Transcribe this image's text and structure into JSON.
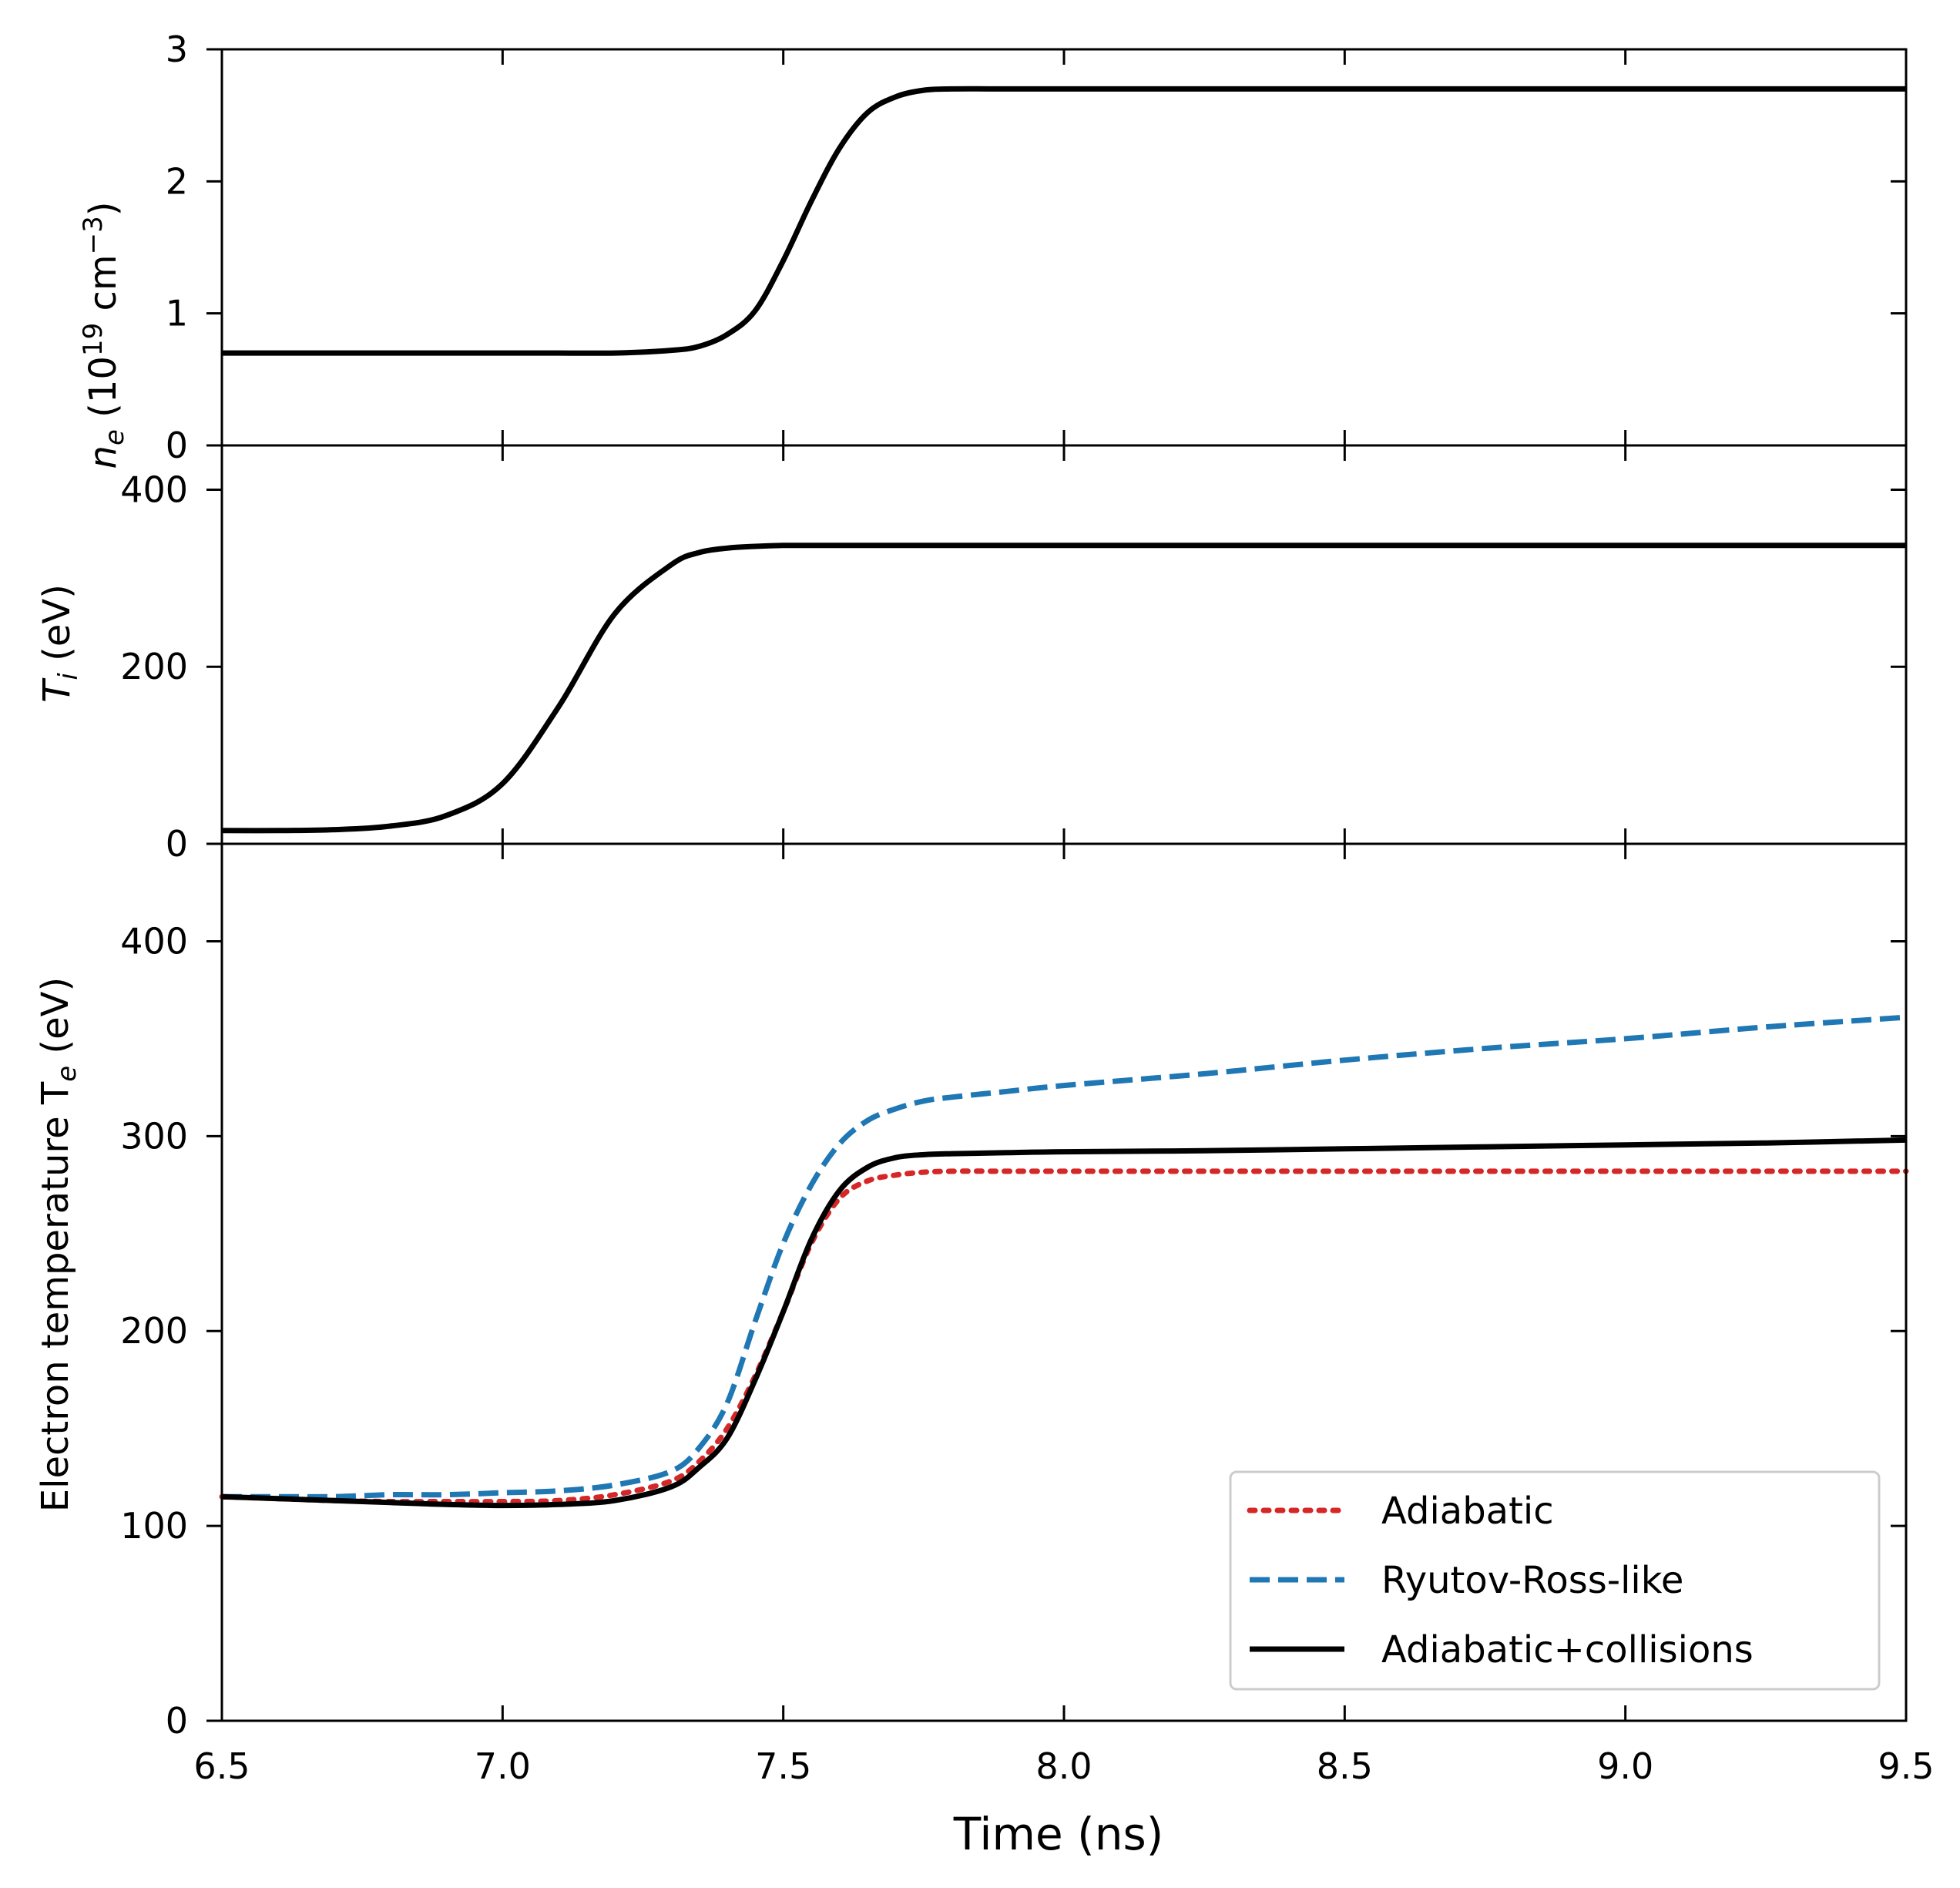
{
  "chart_data": {
    "type": "line",
    "shared_x": {
      "label": "Time (ns)",
      "range": [
        6.5,
        9.5
      ],
      "ticks": [
        6.5,
        7.0,
        7.5,
        8.0,
        8.5,
        9.0,
        9.5
      ],
      "tick_labels": [
        "6.5",
        "7.0",
        "7.5",
        "8.0",
        "8.5",
        "9.0",
        "9.5"
      ]
    },
    "x": [
      6.5,
      6.6,
      6.7,
      6.8,
      6.9,
      7.0,
      7.1,
      7.2,
      7.3,
      7.35,
      7.4,
      7.45,
      7.5,
      7.55,
      7.6,
      7.65,
      7.7,
      7.75,
      7.8,
      7.9,
      8.0,
      8.25,
      8.5,
      8.75,
      9.0,
      9.25,
      9.5
    ],
    "panels": [
      {
        "ylabel_main": "n",
        "ylabel_sub": "e",
        "ylabel_rest": " (10",
        "ylabel_exp1": "19",
        "ylabel_mid": " cm",
        "ylabel_exp2": "−3",
        "ylabel_end": ")",
        "ylim": [
          0,
          3
        ],
        "yticks": [
          0,
          1,
          2,
          3
        ],
        "ytick_labels": [
          "0",
          "1",
          "2",
          "3"
        ],
        "series": [
          {
            "name": "n_e",
            "color": "#000000",
            "style": "solid",
            "values": [
              0.7,
              0.7,
              0.7,
              0.7,
              0.7,
              0.7,
              0.7,
              0.7,
              0.72,
              0.75,
              0.84,
              1.02,
              1.4,
              1.85,
              2.25,
              2.52,
              2.64,
              2.69,
              2.7,
              2.7,
              2.7,
              2.7,
              2.7,
              2.7,
              2.7,
              2.7,
              2.7
            ]
          }
        ]
      },
      {
        "ylabel_main": "T",
        "ylabel_sub": "i",
        "ylabel_rest": " (eV)",
        "ylim": [
          0,
          450
        ],
        "yticks": [
          0,
          200,
          400
        ],
        "ytick_labels": [
          "0",
          "200",
          "400"
        ],
        "series": [
          {
            "name": "T_i",
            "color": "#000000",
            "style": "solid",
            "values": [
              15,
              15,
              16,
              20,
              32,
              68,
              155,
              260,
              315,
              329,
              334,
              336,
              337,
              337,
              337,
              337,
              337,
              337,
              337,
              337,
              337,
              337,
              337,
              337,
              337,
              337,
              337
            ]
          }
        ]
      },
      {
        "ylabel_main": "Electron temperature T",
        "ylabel_sub": "e",
        "ylabel_rest": " (eV)",
        "ylim": [
          0,
          450
        ],
        "yticks": [
          0,
          100,
          200,
          300,
          400
        ],
        "ytick_labels": [
          "0",
          "100",
          "200",
          "300",
          "400"
        ],
        "legend_position": "lower-right",
        "series": [
          {
            "name": "Adiabatic",
            "color": "#d62728",
            "style": "dotted",
            "values": [
              115,
              114,
              113,
              112.5,
              112.5,
              112.5,
              113,
              116,
              123,
              133,
              150,
              177,
              210,
              245,
              268,
              277,
              280,
              281.5,
              282,
              282,
              282,
              282,
              282,
              282,
              282,
              282,
              282
            ]
          },
          {
            "name": "Ryutov-Ross-like",
            "color": "#1f77b4",
            "style": "dashed",
            "values": [
              115,
              115,
              115,
              116,
              116,
              117,
              118,
              121,
              128,
              140,
              163,
              205,
              245,
              275,
              296,
              308,
              314,
              318,
              320,
              323,
              326,
              332,
              339,
              345,
              350,
              356,
              361
            ]
          },
          {
            "name": "Adiabatic+collisions",
            "color": "#000000",
            "style": "solid",
            "values": [
              115,
              114,
              113,
              112,
              111,
              110.5,
              111,
              113,
              120,
              130,
              145,
              175,
              210,
              247,
              272,
              284,
              289,
              290.5,
              291,
              291.5,
              292,
              292.5,
              293.5,
              294.5,
              295.5,
              296.5,
              298
            ]
          }
        ]
      }
    ]
  }
}
